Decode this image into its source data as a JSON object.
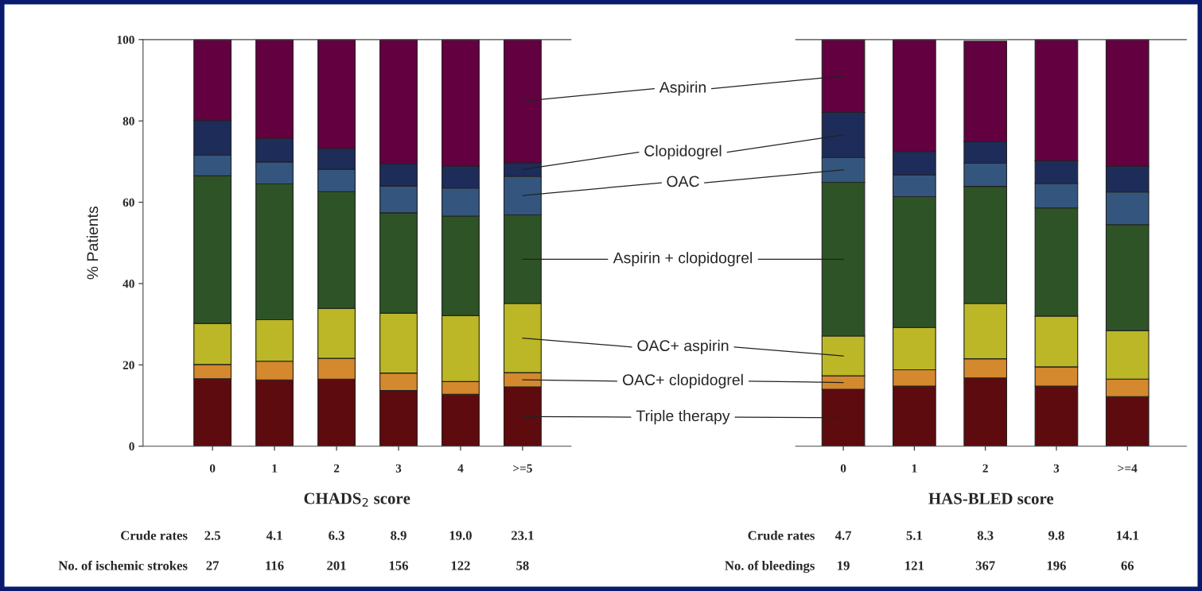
{
  "chart_data": [
    {
      "type": "bar",
      "stacked": true,
      "xlabel": "CHADS$_{2}$ score",
      "ylabel": "% Patients",
      "categories": [
        "0",
        "1",
        "2",
        "3",
        "4",
        ">=5"
      ],
      "ylim": [
        0,
        100
      ],
      "yticks": [
        0,
        20,
        40,
        60,
        80,
        100
      ],
      "grid": false,
      "legend": false,
      "series": [
        {
          "name": "Triple therapy",
          "color": "#5e0b0f",
          "values": [
            16.6,
            16.3,
            16.5,
            13.7,
            12.8,
            14.6
          ]
        },
        {
          "name": "OAC+ clopidogrel",
          "color": "#d4892e",
          "values": [
            3.5,
            4.6,
            5.1,
            4.3,
            3.1,
            3.5
          ]
        },
        {
          "name": "OAC+ aspirin",
          "color": "#bbb726",
          "values": [
            10.1,
            10.2,
            12.3,
            14.7,
            16.2,
            17.0
          ]
        },
        {
          "name": "Aspirin + clopidogrel",
          "color": "#2e5327",
          "values": [
            36.3,
            33.4,
            28.7,
            24.7,
            24.5,
            21.8
          ]
        },
        {
          "name": "OAC",
          "color": "#34567e",
          "values": [
            5.1,
            5.4,
            5.5,
            6.6,
            6.9,
            9.5
          ]
        },
        {
          "name": "Clopidogrel",
          "color": "#1e2c5a",
          "values": [
            8.5,
            5.8,
            5.1,
            5.5,
            5.3,
            3.3
          ]
        },
        {
          "name": "Aspirin",
          "color": "#630040",
          "values": [
            19.9,
            24.3,
            26.8,
            30.5,
            31.2,
            30.3
          ]
        }
      ],
      "annotations": [
        "Crude rates",
        "2.5",
        "4.1",
        "6.3",
        "8.9",
        "19.0",
        "23.1",
        "No. of ischemic strokes",
        "27",
        "116",
        "201",
        "156",
        "122",
        "58"
      ]
    },
    {
      "type": "bar",
      "stacked": true,
      "xlabel": "HAS-BLED score",
      "tick_labels": "x",
      "categories": [
        "0",
        "1",
        "2",
        "3",
        ">=4"
      ],
      "ylim": [
        0,
        100
      ],
      "grid": false,
      "legend": false,
      "series": [
        {
          "color": "#5e0b0f",
          "values": [
            14.0,
            14.8,
            16.8,
            14.8,
            12.2
          ]
        },
        {
          "color": "#d4892e",
          "values": [
            3.3,
            4.0,
            4.7,
            4.7,
            4.3
          ]
        },
        {
          "color": "#bbb726",
          "values": [
            9.8,
            10.4,
            13.6,
            12.5,
            11.9
          ]
        },
        {
          "color": "#2e5327",
          "values": [
            37.8,
            32.2,
            28.8,
            26.6,
            26.1
          ]
        },
        {
          "color": "#34567e",
          "values": [
            6.1,
            5.3,
            5.7,
            6.0,
            8.0
          ]
        },
        {
          "color": "#1e2c5a",
          "values": [
            11.1,
            5.8,
            5.3,
            5.6,
            6.3
          ]
        },
        {
          "color": "#630040",
          "values": [
            17.9,
            27.5,
            24.7,
            29.8,
            31.2
          ]
        }
      ],
      "annotations": [
        "Crude rates",
        "4.7",
        "5.1",
        "8.3",
        "9.8",
        "14.1",
        "No. of bleedings",
        "19",
        "121",
        "367",
        "196",
        "66"
      ]
    }
  ]
}
